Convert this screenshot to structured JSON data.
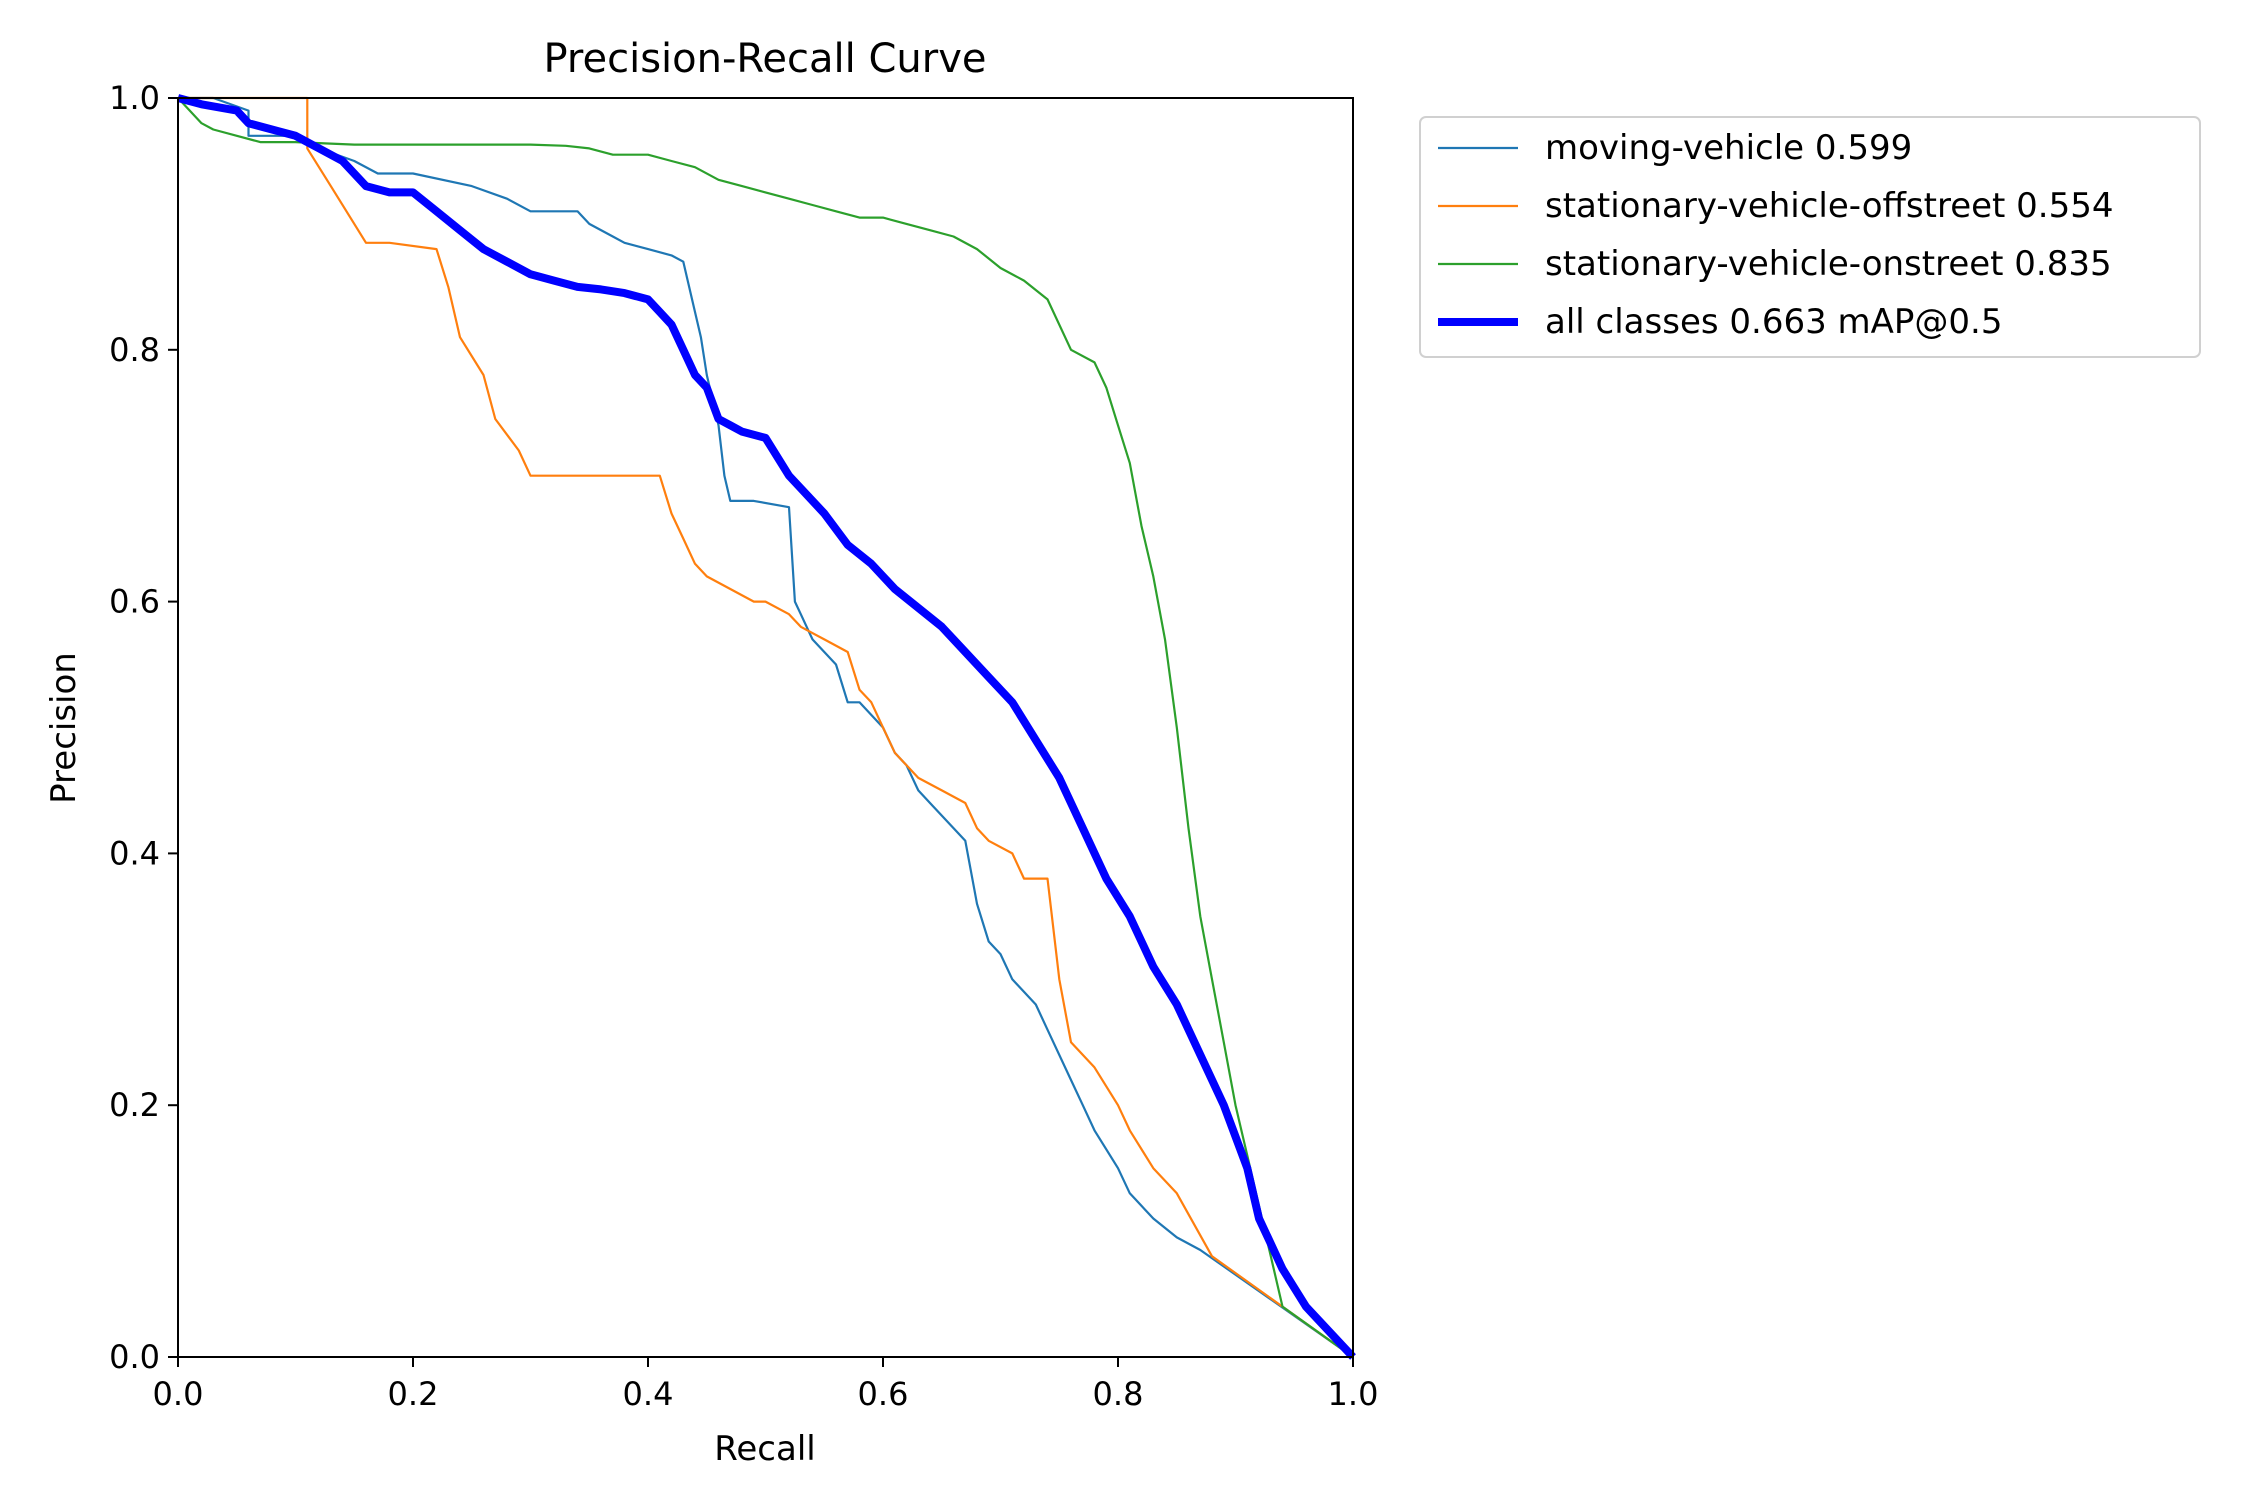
{
  "chart_data": {
    "type": "line",
    "title": "Precision-Recall Curve",
    "xlabel": "Recall",
    "ylabel": "Precision",
    "xlim": [
      0,
      1
    ],
    "ylim": [
      0,
      1
    ],
    "xticks": [
      "0.0",
      "0.2",
      "0.4",
      "0.6",
      "0.8",
      "1.0"
    ],
    "yticks": [
      "0.0",
      "0.2",
      "0.4",
      "0.6",
      "0.8",
      "1.0"
    ],
    "grid": false,
    "legend_position": "outside-top-right",
    "series": [
      {
        "name": "moving-vehicle 0.599",
        "color": "#1f77b4",
        "style": "thin",
        "x": [
          0.0,
          0.03,
          0.06,
          0.06,
          0.1,
          0.12,
          0.15,
          0.17,
          0.2,
          0.25,
          0.28,
          0.3,
          0.34,
          0.35,
          0.37,
          0.38,
          0.4,
          0.42,
          0.43,
          0.44,
          0.445,
          0.45,
          0.46,
          0.465,
          0.47,
          0.49,
          0.52,
          0.525,
          0.53,
          0.54,
          0.55,
          0.56,
          0.57,
          0.58,
          0.6,
          0.61,
          0.62,
          0.63,
          0.64,
          0.65,
          0.67,
          0.68,
          0.69,
          0.7,
          0.71,
          0.73,
          0.74,
          0.76,
          0.77,
          0.78,
          0.8,
          0.81,
          0.83,
          0.85,
          0.87,
          1.0
        ],
        "y": [
          1.0,
          1.0,
          0.99,
          0.97,
          0.97,
          0.96,
          0.95,
          0.94,
          0.94,
          0.93,
          0.92,
          0.91,
          0.91,
          0.9,
          0.89,
          0.885,
          0.88,
          0.875,
          0.87,
          0.83,
          0.81,
          0.78,
          0.74,
          0.7,
          0.68,
          0.68,
          0.675,
          0.6,
          0.59,
          0.57,
          0.56,
          0.55,
          0.52,
          0.52,
          0.5,
          0.48,
          0.47,
          0.45,
          0.44,
          0.43,
          0.41,
          0.36,
          0.33,
          0.32,
          0.3,
          0.28,
          0.26,
          0.22,
          0.2,
          0.18,
          0.15,
          0.13,
          0.11,
          0.095,
          0.085,
          0.0
        ]
      },
      {
        "name": "stationary-vehicle-offstreet 0.554",
        "color": "#ff7f0e",
        "style": "thin",
        "x": [
          0.0,
          0.11,
          0.11,
          0.13,
          0.15,
          0.16,
          0.18,
          0.22,
          0.23,
          0.24,
          0.26,
          0.27,
          0.29,
          0.3,
          0.31,
          0.35,
          0.41,
          0.42,
          0.43,
          0.44,
          0.45,
          0.47,
          0.49,
          0.5,
          0.52,
          0.53,
          0.55,
          0.57,
          0.58,
          0.59,
          0.6,
          0.61,
          0.62,
          0.63,
          0.65,
          0.67,
          0.68,
          0.69,
          0.71,
          0.72,
          0.74,
          0.75,
          0.76,
          0.78,
          0.8,
          0.81,
          0.83,
          0.85,
          0.88,
          1.0
        ],
        "y": [
          1.0,
          1.0,
          0.96,
          0.93,
          0.9,
          0.885,
          0.885,
          0.88,
          0.85,
          0.81,
          0.78,
          0.745,
          0.72,
          0.7,
          0.7,
          0.7,
          0.7,
          0.67,
          0.65,
          0.63,
          0.62,
          0.61,
          0.6,
          0.6,
          0.59,
          0.58,
          0.57,
          0.56,
          0.53,
          0.52,
          0.5,
          0.48,
          0.47,
          0.46,
          0.45,
          0.44,
          0.42,
          0.41,
          0.4,
          0.38,
          0.38,
          0.3,
          0.25,
          0.23,
          0.2,
          0.18,
          0.15,
          0.13,
          0.08,
          0.0
        ]
      },
      {
        "name": "stationary-vehicle-onstreet 0.835",
        "color": "#2ca02c",
        "style": "thin",
        "x": [
          0.0,
          0.02,
          0.03,
          0.05,
          0.07,
          0.1,
          0.15,
          0.2,
          0.25,
          0.3,
          0.33,
          0.35,
          0.37,
          0.4,
          0.42,
          0.44,
          0.46,
          0.48,
          0.5,
          0.52,
          0.54,
          0.56,
          0.58,
          0.6,
          0.62,
          0.64,
          0.66,
          0.68,
          0.7,
          0.72,
          0.74,
          0.76,
          0.78,
          0.79,
          0.8,
          0.81,
          0.82,
          0.83,
          0.84,
          0.85,
          0.86,
          0.87,
          0.88,
          0.89,
          0.9,
          0.91,
          0.92,
          0.93,
          0.94,
          1.0
        ],
        "y": [
          1.0,
          0.98,
          0.975,
          0.97,
          0.965,
          0.965,
          0.963,
          0.963,
          0.963,
          0.963,
          0.962,
          0.96,
          0.955,
          0.955,
          0.95,
          0.945,
          0.935,
          0.93,
          0.925,
          0.92,
          0.915,
          0.91,
          0.905,
          0.905,
          0.9,
          0.895,
          0.89,
          0.88,
          0.865,
          0.855,
          0.84,
          0.8,
          0.79,
          0.77,
          0.74,
          0.71,
          0.66,
          0.62,
          0.57,
          0.5,
          0.42,
          0.35,
          0.3,
          0.25,
          0.2,
          0.16,
          0.12,
          0.08,
          0.04,
          0.0
        ]
      },
      {
        "name": "all classes 0.663 mAP@0.5",
        "color": "#0000ff",
        "style": "thick",
        "x": [
          0.0,
          0.02,
          0.05,
          0.06,
          0.08,
          0.1,
          0.12,
          0.14,
          0.16,
          0.18,
          0.2,
          0.22,
          0.24,
          0.26,
          0.28,
          0.3,
          0.32,
          0.34,
          0.36,
          0.38,
          0.4,
          0.41,
          0.42,
          0.43,
          0.44,
          0.45,
          0.46,
          0.47,
          0.48,
          0.5,
          0.52,
          0.53,
          0.55,
          0.57,
          0.59,
          0.61,
          0.63,
          0.65,
          0.67,
          0.69,
          0.71,
          0.73,
          0.75,
          0.77,
          0.79,
          0.81,
          0.83,
          0.85,
          0.87,
          0.89,
          0.91,
          0.92,
          0.93,
          0.94,
          0.96,
          1.0
        ],
        "y": [
          1.0,
          0.995,
          0.99,
          0.98,
          0.975,
          0.97,
          0.96,
          0.95,
          0.93,
          0.925,
          0.925,
          0.91,
          0.895,
          0.88,
          0.87,
          0.86,
          0.855,
          0.85,
          0.848,
          0.845,
          0.84,
          0.83,
          0.82,
          0.8,
          0.78,
          0.77,
          0.745,
          0.74,
          0.735,
          0.73,
          0.7,
          0.69,
          0.67,
          0.645,
          0.63,
          0.61,
          0.595,
          0.58,
          0.56,
          0.54,
          0.52,
          0.49,
          0.46,
          0.42,
          0.38,
          0.35,
          0.31,
          0.28,
          0.24,
          0.2,
          0.15,
          0.11,
          0.09,
          0.07,
          0.04,
          0.0
        ]
      }
    ]
  }
}
